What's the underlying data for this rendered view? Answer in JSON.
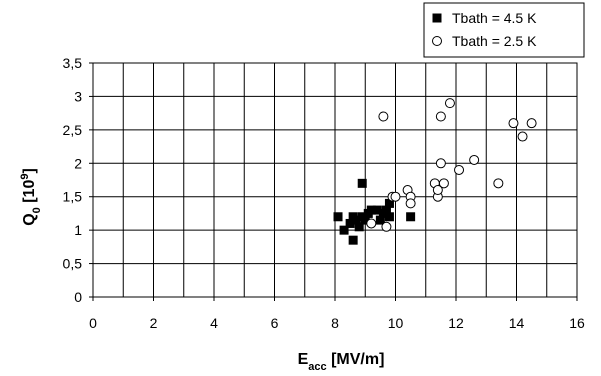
{
  "chart_data": {
    "type": "scatter",
    "xlabel": {
      "main": "E",
      "sub": "acc",
      "rest": " [MV/m]"
    },
    "ylabel": {
      "main": "Q",
      "sub": "0",
      "rest": " [10",
      "sup": "9",
      "end": "]"
    },
    "xlim": [
      0,
      16
    ],
    "ylim": [
      0,
      3.5
    ],
    "x_ticks": [
      0,
      2,
      4,
      6,
      8,
      10,
      12,
      14,
      16
    ],
    "y_ticks": [
      0,
      0.5,
      1,
      1.5,
      2,
      2.5,
      3,
      3.5
    ],
    "x_tick_labels": [
      "0",
      "2",
      "4",
      "6",
      "8",
      "10",
      "12",
      "14",
      "16"
    ],
    "y_tick_labels": [
      "0",
      "0,5",
      "1",
      "1,5",
      "2",
      "2,5",
      "3",
      "3,5"
    ],
    "x_grid_step": 1,
    "y_grid_step": 0.5,
    "grid": true,
    "legend_position": "top-right",
    "series": [
      {
        "name": "Tbath = 4.5 K",
        "marker": "filled-square",
        "color": "#000000",
        "points": [
          [
            8.1,
            1.2
          ],
          [
            8.3,
            1.0
          ],
          [
            8.5,
            1.1
          ],
          [
            8.6,
            0.85
          ],
          [
            8.6,
            1.2
          ],
          [
            8.8,
            1.05
          ],
          [
            8.9,
            1.2
          ],
          [
            8.9,
            1.7
          ],
          [
            9.0,
            1.15
          ],
          [
            9.2,
            1.3
          ],
          [
            9.4,
            1.3
          ],
          [
            9.5,
            1.15
          ],
          [
            9.6,
            1.25
          ],
          [
            9.8,
            1.4
          ],
          [
            9.8,
            1.2
          ],
          [
            10.5,
            1.2
          ],
          [
            8.7,
            1.15
          ],
          [
            9.1,
            1.25
          ],
          [
            9.7,
            1.3
          ]
        ]
      },
      {
        "name": "Tbath = 2.5 K",
        "marker": "open-circle",
        "color": "#000000",
        "points": [
          [
            9.6,
            2.7
          ],
          [
            9.2,
            1.1
          ],
          [
            9.7,
            1.05
          ],
          [
            9.9,
            1.5
          ],
          [
            10.0,
            1.5
          ],
          [
            10.4,
            1.6
          ],
          [
            10.5,
            1.5
          ],
          [
            10.5,
            1.4
          ],
          [
            11.3,
            1.7
          ],
          [
            11.4,
            1.5
          ],
          [
            11.4,
            1.6
          ],
          [
            11.5,
            2.0
          ],
          [
            11.5,
            2.7
          ],
          [
            11.6,
            1.7
          ],
          [
            11.8,
            2.9
          ],
          [
            12.1,
            1.9
          ],
          [
            12.6,
            2.05
          ],
          [
            13.4,
            1.7
          ],
          [
            13.9,
            2.6
          ],
          [
            14.2,
            2.4
          ],
          [
            14.5,
            2.6
          ]
        ]
      }
    ]
  }
}
